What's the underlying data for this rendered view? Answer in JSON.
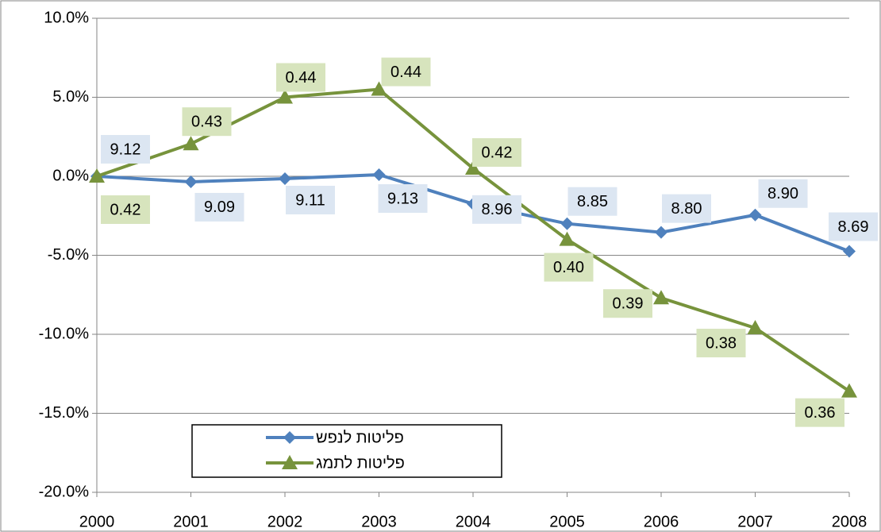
{
  "chart_data": {
    "type": "line",
    "categories": [
      "2000",
      "2001",
      "2002",
      "2003",
      "2004",
      "2005",
      "2006",
      "2007",
      "2008"
    ],
    "ylim": [
      -20,
      10
    ],
    "yticks": [
      {
        "value": -20,
        "label": "-20.0%"
      },
      {
        "value": -15,
        "label": "-15.0%"
      },
      {
        "value": -10,
        "label": "-10.0%"
      },
      {
        "value": -5,
        "label": "-5.0%"
      },
      {
        "value": 0,
        "label": "0.0%"
      },
      {
        "value": 5,
        "label": "5.0%"
      },
      {
        "value": 10,
        "label": "10.0%"
      }
    ],
    "grid": true,
    "legend": "bottom-left",
    "series": [
      {
        "name": "פליטות לנפש",
        "color": "#4f81bd",
        "marker": "diamond",
        "label_color": "#dce6f2",
        "values": [
          0.0,
          -0.35,
          -0.15,
          0.1,
          -1.75,
          -3.0,
          -3.55,
          -2.45,
          -4.75
        ],
        "point_labels": [
          "9.12",
          "9.09",
          "9.11",
          "9.13",
          "8.96",
          "8.85",
          "8.80",
          "8.90",
          "8.69"
        ]
      },
      {
        "name": "פליטות לתמג",
        "color": "#77933c",
        "marker": "triangle",
        "label_color": "#d7e4bd",
        "values": [
          0.0,
          2.05,
          5.0,
          5.5,
          0.5,
          -4.0,
          -7.7,
          -9.6,
          -13.6
        ],
        "point_labels": [
          "0.42",
          "0.43",
          "0.44",
          "0.44",
          "0.42",
          "0.40",
          "0.39",
          "0.38",
          "0.36"
        ]
      }
    ]
  }
}
